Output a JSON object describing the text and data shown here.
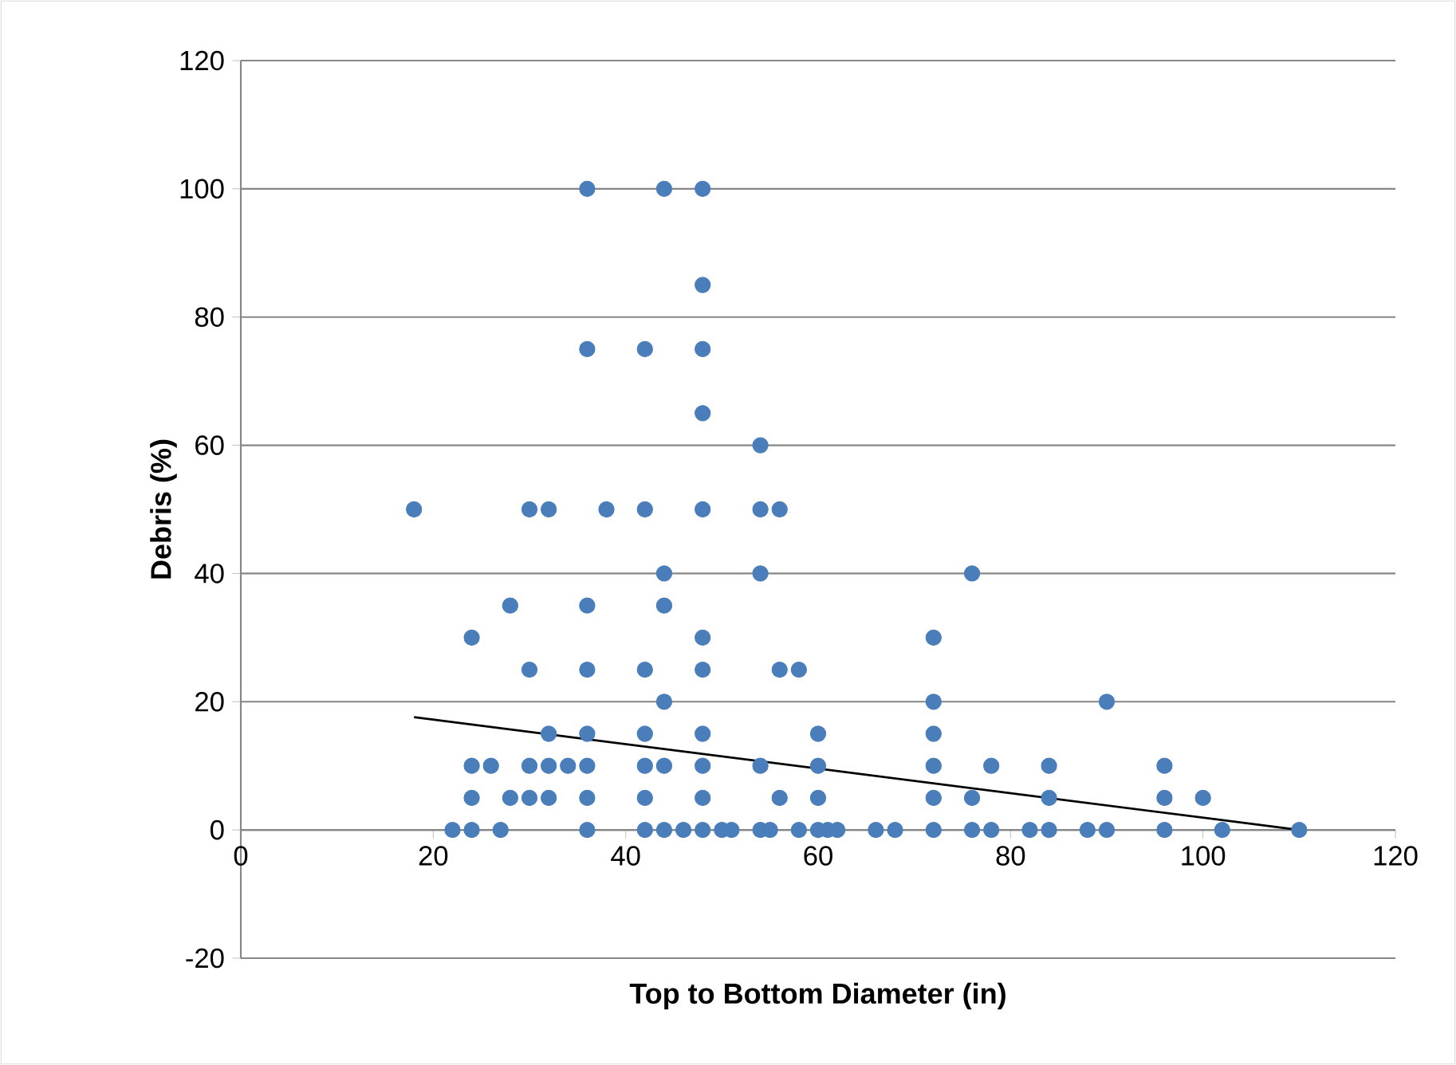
{
  "chart_data": {
    "type": "scatter",
    "xlabel": "Top to Bottom Diameter (in)",
    "ylabel": "Debris (%)",
    "xlim": [
      0,
      120
    ],
    "ylim": [
      -20,
      120
    ],
    "xticks": [
      0,
      20,
      40,
      60,
      80,
      100,
      120
    ],
    "yticks": [
      -20,
      0,
      20,
      40,
      60,
      80,
      100,
      120
    ],
    "grid": "y",
    "series": [
      {
        "color": "#4a7ebb",
        "marker": "circle",
        "x": [
          18,
          22,
          24,
          24,
          24,
          24,
          26,
          27,
          28,
          28,
          30,
          30,
          30,
          30,
          32,
          32,
          32,
          32,
          34,
          36,
          36,
          36,
          36,
          36,
          36,
          36,
          36,
          38,
          42,
          42,
          42,
          42,
          42,
          42,
          42,
          44,
          44,
          44,
          44,
          44,
          44,
          46,
          48,
          48,
          48,
          48,
          48,
          48,
          48,
          48,
          48,
          48,
          48,
          50,
          51,
          54,
          54,
          54,
          54,
          54,
          55,
          56,
          56,
          56,
          58,
          58,
          60,
          60,
          60,
          60,
          61,
          62,
          66,
          68,
          72,
          72,
          72,
          72,
          72,
          72,
          76,
          76,
          76,
          78,
          78,
          82,
          84,
          84,
          84,
          88,
          90,
          90,
          96,
          96,
          96,
          100,
          102,
          110
        ],
        "values": [
          50,
          0,
          30,
          10,
          5,
          0,
          10,
          0,
          35,
          5,
          50,
          25,
          10,
          5,
          50,
          15,
          10,
          5,
          10,
          100,
          75,
          35,
          25,
          15,
          10,
          5,
          0,
          50,
          75,
          50,
          25,
          15,
          10,
          5,
          0,
          100,
          40,
          35,
          20,
          10,
          0,
          0,
          100,
          85,
          75,
          65,
          50,
          30,
          25,
          15,
          10,
          5,
          0,
          0,
          0,
          60,
          50,
          40,
          10,
          0,
          0,
          50,
          25,
          5,
          25,
          0,
          15,
          10,
          5,
          0,
          0,
          0,
          0,
          0,
          30,
          20,
          15,
          10,
          5,
          0,
          40,
          5,
          0,
          10,
          0,
          0,
          10,
          5,
          0,
          0,
          20,
          0,
          10,
          5,
          0,
          5,
          0,
          0
        ]
      },
      {
        "type": "line",
        "color": "#000000",
        "marker": "none",
        "x": [
          18,
          110
        ],
        "values": [
          17.6,
          0
        ]
      }
    ]
  }
}
